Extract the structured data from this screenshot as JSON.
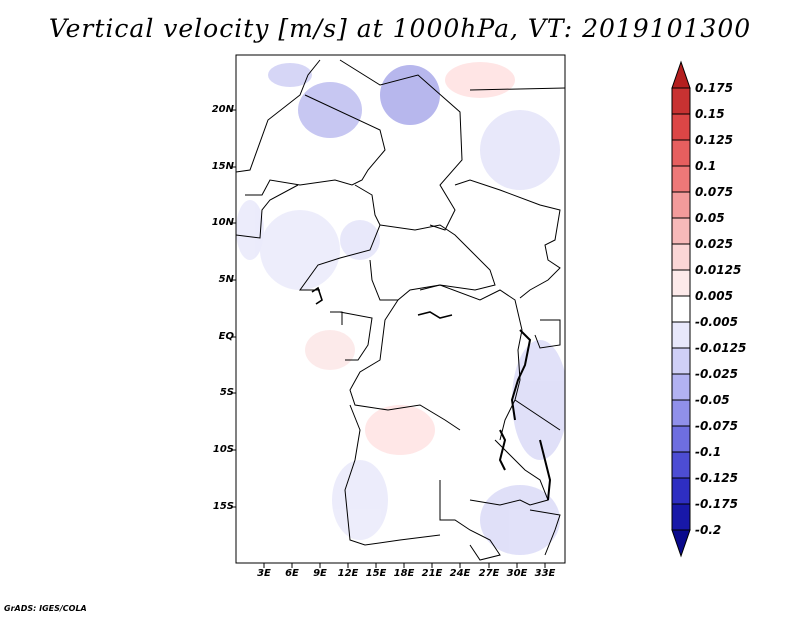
{
  "title": "Vertical velocity [m/s] at 1000hPa, VT: 2019101300",
  "credit": "GrADS: IGES/COLA",
  "map": {
    "lat_labels": [
      "20N",
      "15N",
      "10N",
      "5N",
      "EQ",
      "5S",
      "10S",
      "15S"
    ],
    "lon_labels": [
      "3E",
      "6E",
      "9E",
      "12E",
      "15E",
      "18E",
      "21E",
      "24E",
      "27E",
      "30E",
      "33E"
    ]
  },
  "colorbar": {
    "levels": [
      "0.175",
      "0.15",
      "0.125",
      "0.1",
      "0.075",
      "0.05",
      "0.025",
      "0.0125",
      "0.005",
      "-0.005",
      "-0.0125",
      "-0.025",
      "-0.05",
      "-0.075",
      "-0.1",
      "-0.125",
      "-0.175",
      "-0.2"
    ],
    "colors": [
      "#b41f1f",
      "#c83232",
      "#dc4646",
      "#e65f5f",
      "#ee7878",
      "#f39b9b",
      "#f7b9b9",
      "#fbd6d6",
      "#fdeaea",
      "#ffffff",
      "#e8e8fb",
      "#d0d0f7",
      "#b2b2f2",
      "#9090ea",
      "#6e6ee0",
      "#4d4dd4",
      "#2e2ec2",
      "#1818a8",
      "#0a0a8c"
    ]
  }
}
